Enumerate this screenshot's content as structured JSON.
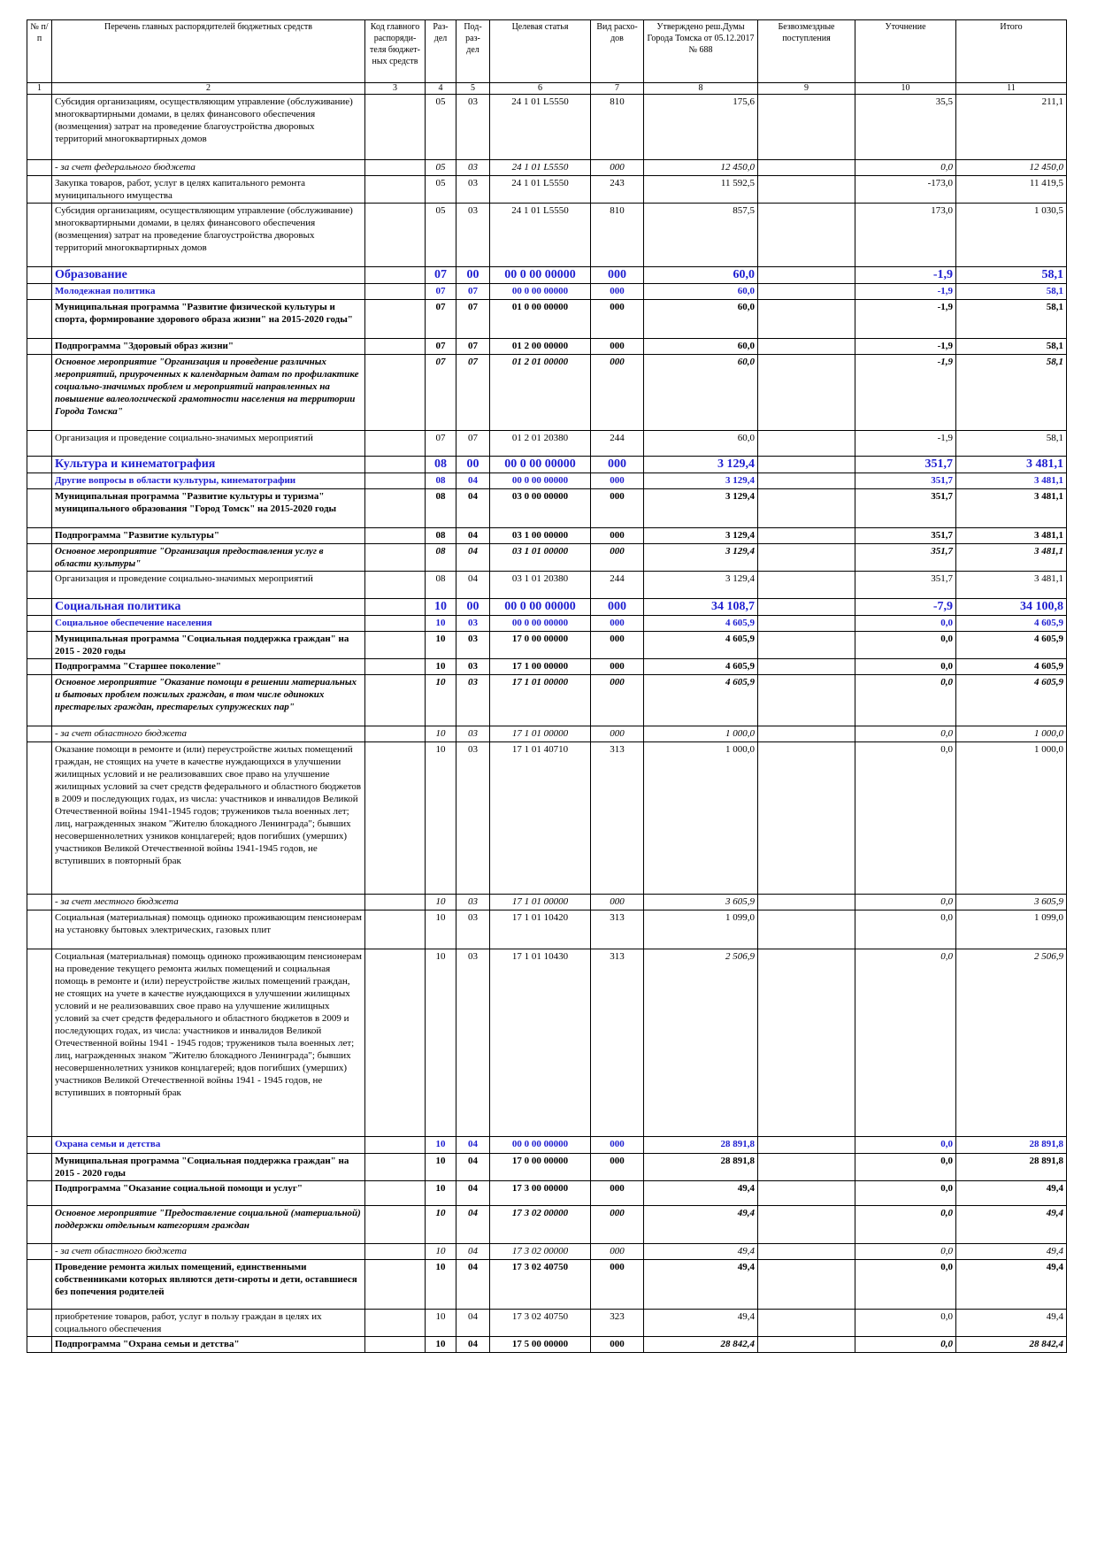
{
  "header": {
    "columns": [
      "№ п/п",
      "Перечень главных распорядителей бюджетных средств",
      "Код главного распоряди-теля бюджет-ных средств",
      "Раз-дел",
      "Под-раз-дел",
      "Целевая статья",
      "Вид расхо-дов",
      "Утверждено реш.Думы Города Томска от 05.12.2017 № 688",
      "Безвозмездные поступления",
      "Уточнение",
      "Итого"
    ],
    "numbers": [
      "1",
      "2",
      "3",
      "4",
      "5",
      "6",
      "7",
      "8",
      "9",
      "10",
      "11"
    ]
  },
  "table": {
    "rows": [
      {
        "name": "Субсидия организациям, осуществляющим управление (обслуживание) многоквартирными домами, в целях финансового обеспечения (возмещения) затрат на проведение благоустройства дворовых территорий многоквартирных домов",
        "razdel": "05",
        "podrazdel": "03",
        "statya": "24 1 01 L5550",
        "vid": "810",
        "utv": "175,6",
        "utoch": "35,5",
        "itogo": "211,1"
      },
      {
        "name": " - за счет федерального бюджета",
        "razdel": "05",
        "podrazdel": "03",
        "statya": "24 1 01 L5550",
        "vid": "000",
        "utv": "12 450,0",
        "utoch": "0,0",
        "itogo": "12 450,0"
      },
      {
        "name": "Закупка товаров, работ, услуг в целях капитального ремонта муниципального имущества",
        "razdel": "05",
        "podrazdel": "03",
        "statya": "24 1 01 L5550",
        "vid": "243",
        "utv": "11 592,5",
        "utoch": "-173,0",
        "itogo": "11 419,5"
      },
      {
        "name": "Субсидия организациям, осуществляющим управление (обслуживание) многоквартирными домами, в целях финансового обеспечения (возмещения) затрат на проведение благоустройства дворовых территорий многоквартирных домов",
        "razdel": "05",
        "podrazdel": "03",
        "statya": "24 1 01 L5550",
        "vid": "810",
        "utv": "857,5",
        "utoch": "173,0",
        "itogo": "1 030,5"
      },
      {
        "name": "Образование",
        "razdel": "07",
        "podrazdel": "00",
        "statya": "00 0 00 00000",
        "vid": "000",
        "utv": "60,0",
        "utoch": "-1,9",
        "itogo": "58,1"
      },
      {
        "name": "Молодежная политика",
        "razdel": "07",
        "podrazdel": "07",
        "statya": "00 0 00 00000",
        "vid": "000",
        "utv": "60,0",
        "utoch": "-1,9",
        "itogo": "58,1"
      },
      {
        "name": "Муниципальная программа \"Развитие физической культуры и спорта, формирование здорового образа жизни\" на 2015-2020 годы\"",
        "razdel": "07",
        "podrazdel": "07",
        "statya": "01 0 00 00000",
        "vid": "000",
        "utv": "60,0",
        "utoch": "-1,9",
        "itogo": "58,1"
      },
      {
        "name": "Подпрограмма \"Здоровый образ жизни\"",
        "razdel": "07",
        "podrazdel": "07",
        "statya": "01 2 00 00000",
        "vid": "000",
        "utv": "60,0",
        "utoch": "-1,9",
        "itogo": "58,1"
      },
      {
        "name": "Основное мероприятие \"Организация и проведение различных мероприятий, приуроченных к календарным датам по профилактике социально-значимых проблем и мероприятий направленных на повышение валеологической грамотности населения на территории Города Томска\"",
        "razdel": "07",
        "podrazdel": "07",
        "statya": "01 2 01 00000",
        "vid": "000",
        "utv": "60,0",
        "utoch": "-1,9",
        "itogo": "58,1"
      },
      {
        "name": "Организация и проведение социально-значимых мероприятий",
        "razdel": "07",
        "podrazdel": "07",
        "statya": "01 2 01 20380",
        "vid": "244",
        "utv": "60,0",
        "utoch": "-1,9",
        "itogo": "58,1"
      },
      {
        "name": "Культура и кинематография",
        "razdel": "08",
        "podrazdel": "00",
        "statya": "00 0 00 00000",
        "vid": "000",
        "utv": "3 129,4",
        "utoch": "351,7",
        "itogo": "3 481,1"
      },
      {
        "name": "Другие вопросы в области культуры, кинематографии",
        "razdel": "08",
        "podrazdel": "04",
        "statya": "00 0 00 00000",
        "vid": "000",
        "utv": "3 129,4",
        "utoch": "351,7",
        "itogo": "3 481,1"
      },
      {
        "name": "Муниципальная программа \"Развитие культуры и туризма\" муниципального образования \"Город Томск\" на 2015-2020 годы",
        "razdel": "08",
        "podrazdel": "04",
        "statya": "03 0 00 00000",
        "vid": "000",
        "utv": "3 129,4",
        "utoch": "351,7",
        "itogo": "3 481,1"
      },
      {
        "name": "Подпрограмма \"Развитие культуры\"",
        "razdel": "08",
        "podrazdel": "04",
        "statya": "03 1 00 00000",
        "vid": "000",
        "utv": "3 129,4",
        "utoch": "351,7",
        "itogo": "3 481,1"
      },
      {
        "name": "Основное мероприятие \"Организация предоставления услуг в области культуры\"",
        "razdel": "08",
        "podrazdel": "04",
        "statya": "03 1 01 00000",
        "vid": "000",
        "utv": "3 129,4",
        "utoch": "351,7",
        "itogo": "3 481,1"
      },
      {
        "name": "Организация и проведение социально-значимых мероприятий",
        "razdel": "08",
        "podrazdel": "04",
        "statya": "03 1 01 20380",
        "vid": "244",
        "utv": "3 129,4",
        "utoch": "351,7",
        "itogo": "3 481,1"
      },
      {
        "name": "Социальная политика",
        "razdel": "10",
        "podrazdel": "00",
        "statya": "00 0 00 00000",
        "vid": "000",
        "utv": "34 108,7",
        "utoch": "-7,9",
        "itogo": "34 100,8"
      },
      {
        "name": "Социальное обеспечение населения",
        "razdel": "10",
        "podrazdel": "03",
        "statya": "00 0 00 00000",
        "vid": "000",
        "utv": "4 605,9",
        "utoch": "0,0",
        "itogo": "4 605,9"
      },
      {
        "name": "Муниципальная программа \"Социальная поддержка граждан\" на 2015 - 2020 годы",
        "razdel": "10",
        "podrazdel": "03",
        "statya": "17 0 00 00000",
        "vid": "000",
        "utv": "4 605,9",
        "utoch": "0,0",
        "itogo": "4 605,9"
      },
      {
        "name": "Подпрограмма \"Старшее поколение\"",
        "razdel": "10",
        "podrazdel": "03",
        "statya": "17 1 00 00000",
        "vid": "000",
        "utv": "4 605,9",
        "utoch": "0,0",
        "itogo": "4 605,9"
      },
      {
        "name": "Основное мероприятие \"Оказание помощи в решении материальных и бытовых проблем пожилых граждан, в том числе одиноких престарелых граждан, престарелых супружеских пар\"",
        "razdel": "10",
        "podrazdel": "03",
        "statya": "17 1 01 00000",
        "vid": "000",
        "utv": "4 605,9",
        "utoch": "0,0",
        "itogo": "4 605,9"
      },
      {
        "name": " - за счет областного бюджета",
        "razdel": "10",
        "podrazdel": "03",
        "statya": "17 1 01 00000",
        "vid": "000",
        "utv": "1 000,0",
        "utoch": "0,0",
        "itogo": "1 000,0"
      },
      {
        "name": "Оказание помощи в ремонте и (или) переустройстве жилых помещений граждан, не стоящих на учете в качестве нуждающихся в улучшении жилищных условий и не реализовавших свое право на улучшение жилищных условий за счет средств федерального и областного бюджетов в 2009 и последующих годах, из числа: участников и инвалидов Великой Отечественной войны 1941-1945 годов; тружеников тыла военных лет; лиц, награжденных знаком \"Жителю блокадного Ленинграда\"; бывших несовершеннолетних узников концлагерей; вдов погибших (умерших) участников Великой Отечественной войны 1941-1945 годов, не вступивших в повторный брак",
        "razdel": "10",
        "podrazdel": "03",
        "statya": "17 1 01 40710",
        "vid": "313",
        "utv": "1 000,0",
        "utoch": "0,0",
        "itogo": "1 000,0"
      },
      {
        "name": " - за счет местного бюджета",
        "razdel": "10",
        "podrazdel": "03",
        "statya": "17 1 01 00000",
        "vid": "000",
        "utv": "3 605,9",
        "utoch": "0,0",
        "itogo": "3 605,9"
      },
      {
        "name": "Социальная (материальная) помощь одиноко проживающим пенсионерам на установку бытовых электрических, газовых плит",
        "razdel": "10",
        "podrazdel": "03",
        "statya": "17 1 01 10420",
        "vid": "313",
        "utv": "1 099,0",
        "utoch": "0,0",
        "itogo": "1 099,0"
      },
      {
        "name": "Социальная (материальная) помощь одиноко проживающим пенсионерам на проведение текущего ремонта жилых помещений и социальная помощь в ремонте и (или) переустройстве жилых помещений граждан, не стоящих на учете в качестве нуждающихся в улучшении жилищных условий и не реализовавших свое право на улучшение жилищных условий за счет средств федерального и областного бюджетов в 2009 и последующих годах, из числа: участников и инвалидов Великой Отечественной войны 1941 - 1945 годов; тружеников тыла военных лет; лиц, награжденных знаком \"Жителю блокадного Ленинграда\"; бывших несовершеннолетних узников концлагерей; вдов погибших (умерших) участников Великой Отечественной войны 1941 - 1945 годов, не вступивших в повторный брак",
        "razdel": "10",
        "podrazdel": "03",
        "statya": "17 1 01 10430",
        "vid": "313",
        "utv": "2 506,9",
        "utoch": "0,0",
        "itogo": "2 506,9"
      },
      {
        "name": "Охрана семьи и детства",
        "razdel": "10",
        "podrazdel": "04",
        "statya": "00 0 00 00000",
        "vid": "000",
        "utv": "28 891,8",
        "utoch": "0,0",
        "itogo": "28 891,8"
      },
      {
        "name": "Муниципальная программа \"Социальная поддержка граждан\" на 2015 - 2020 годы",
        "razdel": "10",
        "podrazdel": "04",
        "statya": "17 0 00 00000",
        "vid": "000",
        "utv": "28 891,8",
        "utoch": "0,0",
        "itogo": "28 891,8"
      },
      {
        "name": "Подпрограмма \"Оказание социальной помощи и услуг\"",
        "razdel": "10",
        "podrazdel": "04",
        "statya": "17 3 00 00000",
        "vid": "000",
        "utv": "49,4",
        "utoch": "0,0",
        "itogo": "49,4"
      },
      {
        "name": "Основное мероприятие \"Предоставление социальной (материальной) поддержки отдельным категориям граждан",
        "razdel": "10",
        "podrazdel": "04",
        "statya": "17 3 02 00000",
        "vid": "000",
        "utv": "49,4",
        "utoch": "0,0",
        "itogo": "49,4"
      },
      {
        "name": "- за счет областного бюджета",
        "razdel": "10",
        "podrazdel": "04",
        "statya": "17 3 02 00000",
        "vid": "000",
        "utv": "49,4",
        "utoch": "0,0",
        "itogo": "49,4"
      },
      {
        "name": "Проведение ремонта жилых помещений, единственными собственниками которых являются дети-сироты и дети, оставшиеся без попечения родителей",
        "razdel": "10",
        "podrazdel": "04",
        "statya": "17 3 02 40750",
        "vid": "000",
        "utv": "49,4",
        "utoch": "0,0",
        "itogo": "49,4"
      },
      {
        "name": "приобретение товаров, работ, услуг в пользу граждан в целях их социального обеспечения",
        "razdel": "10",
        "podrazdel": "04",
        "statya": "17 3 02 40750",
        "vid": "323",
        "utv": "49,4",
        "utoch": "0,0",
        "itogo": "49,4"
      },
      {
        "name": "Подпрограмма \"Охрана семьи и детства\"",
        "razdel": "10",
        "podrazdel": "04",
        "statya": "17 5 00 00000",
        "vid": "000",
        "utv": "28 842,4",
        "utoch": "0,0",
        "itogo": "28 842,4"
      }
    ]
  }
}
